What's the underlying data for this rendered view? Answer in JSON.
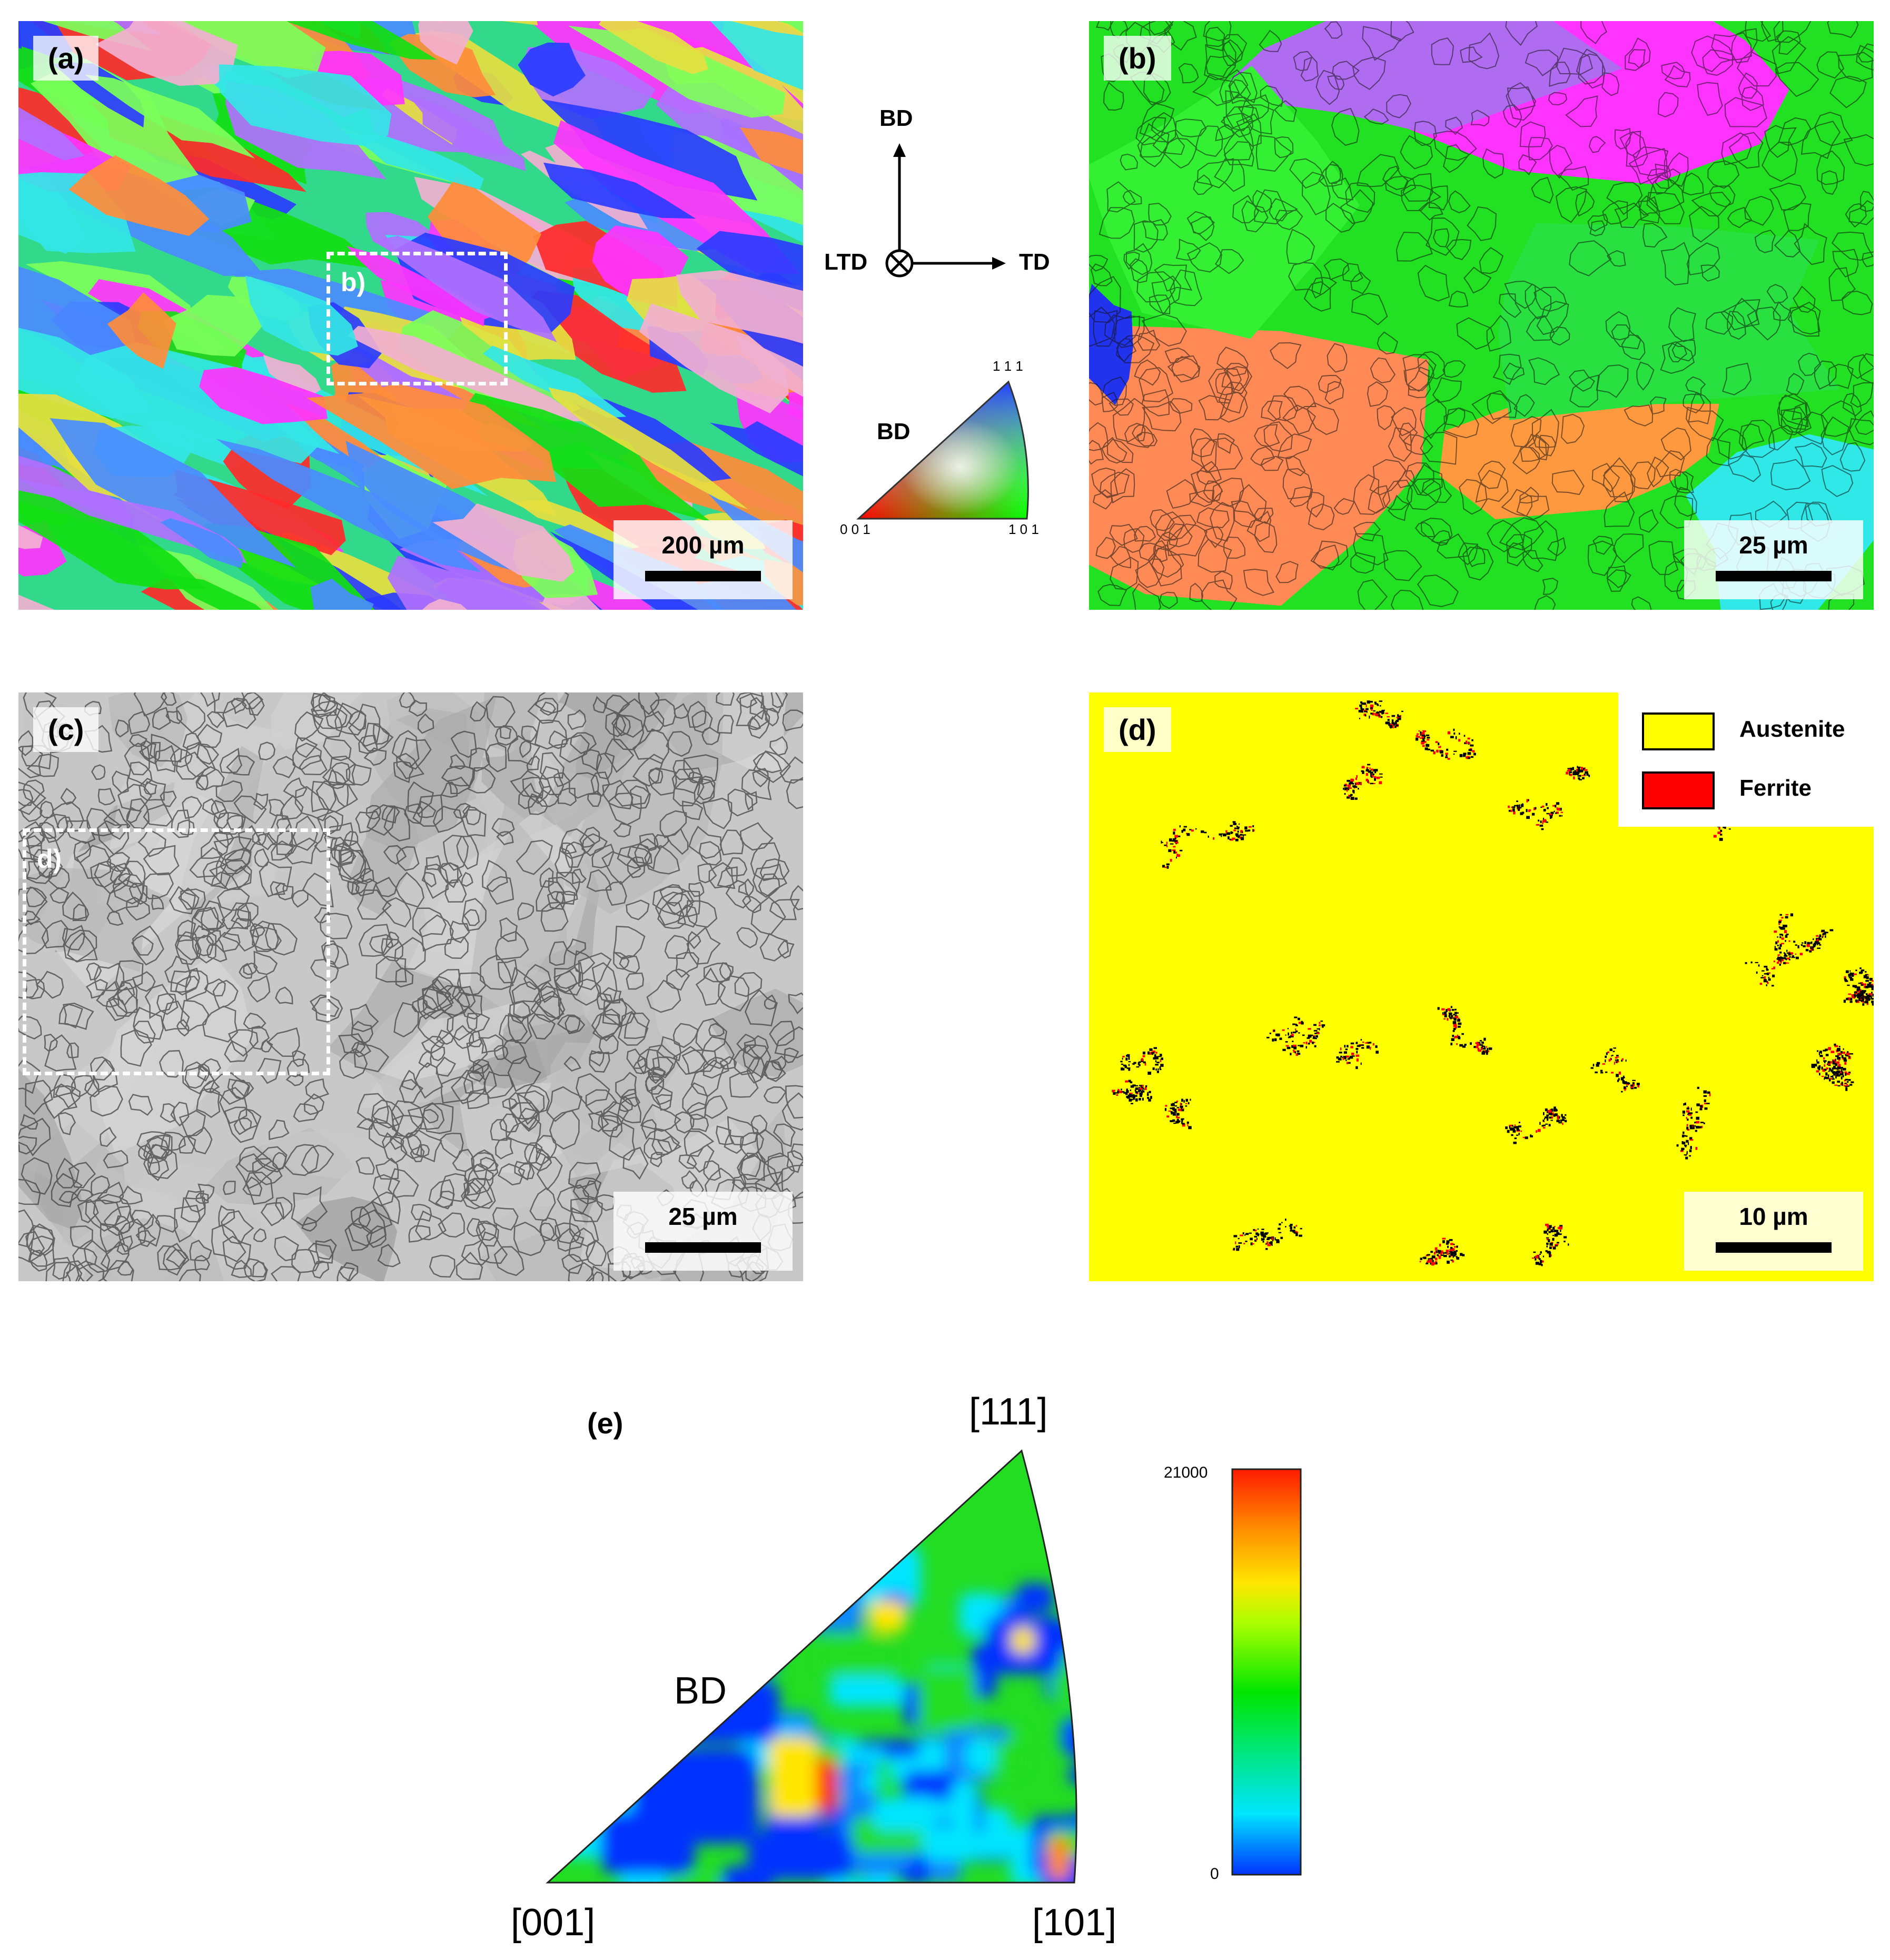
{
  "panel_a": {
    "label": "(a)",
    "scale": "200 µm",
    "roi_label": "b)"
  },
  "panel_b": {
    "label": "(b)",
    "scale": "25 µm"
  },
  "panel_c": {
    "label": "(c)",
    "scale": "25 µm",
    "roi_label": "d)"
  },
  "panel_d": {
    "label": "(d)",
    "scale": "10 µm",
    "legend": [
      {
        "label": "Austenite",
        "color": "#ffff00"
      },
      {
        "label": "Ferrite",
        "color": "#ff0000"
      }
    ]
  },
  "axes": {
    "bd": "BD",
    "ltd": "LTD",
    "td": "TD"
  },
  "ipf_key": {
    "direction": "BD",
    "corner_111": "1 1 1",
    "corner_001": "0 0 1",
    "corner_101": "1 0 1"
  },
  "panel_e": {
    "label": "(e)",
    "corner_111": "[111]",
    "corner_001": "[001]",
    "corner_101": "[101]",
    "direction": "BD",
    "colorbar_max": "21000",
    "colorbar_min": "0"
  },
  "colors": {
    "orientation_palette": [
      "#ff2a2a",
      "#12e012",
      "#2a3cff",
      "#ff33ff",
      "#33e6e6",
      "#ff8c3a",
      "#7cff5a",
      "#b070ff",
      "#f2b0d0",
      "#e6e040",
      "#4a8cff"
    ]
  }
}
